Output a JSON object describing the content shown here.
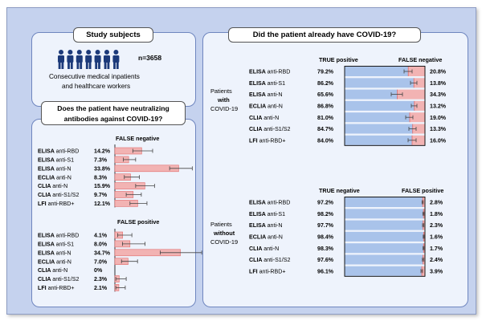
{
  "colors": {
    "background": "#c5d2ee",
    "panel": "#eef3fc",
    "tp_bar": "#a9c3ea",
    "neg_bar": "#f2b3b3",
    "line": "#e26b6b",
    "icon": "#1c3a7a"
  },
  "study": {
    "title": "Study subjects",
    "n_label": "n=3658",
    "description_line1": "Consecutive medical inpatients",
    "description_line2": "and healthcare workers",
    "icon": "person-icon",
    "person_count": 7
  },
  "neutral": {
    "title_line1": "Does the patient have neutralizing",
    "title_line2": "antibodies against COVID-19?",
    "fn_header": "FALSE negative",
    "fp_header": "FALSE positive"
  },
  "covid": {
    "title": "Did the patient already have COVID-19?",
    "with_label": [
      "Patients",
      "with",
      "COVID-19"
    ],
    "without_label": [
      "Patients",
      "without",
      "COVID-19"
    ],
    "tp_header": "TRUE positive",
    "fn_header": "FALSE negative",
    "tn_header": "TRUE negative",
    "fp_header": "FALSE positive"
  },
  "chart_data": [
    {
      "type": "bar",
      "title": "FALSE negative",
      "categories": [
        [
          "ELISA",
          "anti-RBD"
        ],
        [
          "ELISA",
          "anti-S1"
        ],
        [
          "ELISA",
          "anti-N"
        ],
        [
          "ECLIA",
          "anti-N"
        ],
        [
          "CLIA",
          "anti-N"
        ],
        [
          "CLIA",
          "anti-S1/S2"
        ],
        [
          "LFI",
          "anti-RBD+"
        ]
      ],
      "labels": [
        "14.2%",
        "7.3%",
        "33.8%",
        "8.3%",
        "15.9%",
        "9.7%",
        "12.1%"
      ],
      "values": [
        14.2,
        7.3,
        33.8,
        8.3,
        15.9,
        9.7,
        12.1
      ],
      "err_low": [
        9.5,
        4.5,
        29,
        5,
        11,
        6,
        8
      ],
      "err_high": [
        20,
        11,
        41,
        13,
        21,
        14,
        17
      ]
    },
    {
      "type": "bar",
      "title": "FALSE positive",
      "categories": [
        [
          "ELISA",
          "anti-RBD"
        ],
        [
          "ELISA",
          "anti-S1"
        ],
        [
          "ELISA",
          "anti-N"
        ],
        [
          "ECLIA",
          "anti-N"
        ],
        [
          "CLIA",
          "anti-N"
        ],
        [
          "CLIA",
          "anti-S1/S2"
        ],
        [
          "LFI",
          "anti-RBD+"
        ]
      ],
      "labels": [
        "4.1%",
        "8.0%",
        "34.7%",
        "7.0%",
        "0%",
        "2.3%",
        "2.1%"
      ],
      "values": [
        4.1,
        8.0,
        34.7,
        7.0,
        0,
        2.3,
        2.1
      ],
      "err_low": [
        1.5,
        4,
        24,
        3.5,
        0,
        0.5,
        0.5
      ],
      "err_high": [
        9,
        16,
        46,
        12,
        0,
        6,
        5.5
      ]
    },
    {
      "type": "bar",
      "title": "Patients with COVID-19",
      "categories": [
        [
          "ELISA",
          "anti-RBD"
        ],
        [
          "ELISA",
          "anti-S1"
        ],
        [
          "ELISA",
          "anti-N"
        ],
        [
          "ECLIA",
          "anti-N"
        ],
        [
          "CLIA",
          "anti-N"
        ],
        [
          "CLIA",
          "anti-S1/S2"
        ],
        [
          "LFI",
          "anti-RBD+"
        ]
      ],
      "series": [
        {
          "name": "TRUE positive",
          "labels": [
            "79.2%",
            "86.2%",
            "65.6%",
            "86.8%",
            "81.0%",
            "84.7%",
            "84.0%"
          ],
          "values": [
            79.2,
            86.2,
            65.6,
            86.8,
            81.0,
            84.7,
            84.0
          ]
        },
        {
          "name": "FALSE negative",
          "labels": [
            "20.8%",
            "13.8%",
            "34.3%",
            "13.2%",
            "19.0%",
            "13.3%",
            "16.0%"
          ],
          "values": [
            20.8,
            13.8,
            34.3,
            13.2,
            19.0,
            13.3,
            16.0
          ]
        }
      ],
      "err_low": [
        74,
        82,
        58,
        83,
        76,
        80,
        79
      ],
      "err_high": [
        84,
        90,
        72,
        90,
        85,
        89,
        89
      ]
    },
    {
      "type": "bar",
      "title": "Patients without COVID-19",
      "categories": [
        [
          "ELISA",
          "anti-RBD"
        ],
        [
          "ELISA",
          "anti-S1"
        ],
        [
          "ELISA",
          "anti-N"
        ],
        [
          "ECLIA",
          "anti-N"
        ],
        [
          "CLIA",
          "anti-N"
        ],
        [
          "CLIA",
          "anti-S1/S2"
        ],
        [
          "LFI",
          "anti-RBD+"
        ]
      ],
      "series": [
        {
          "name": "TRUE negative",
          "labels": [
            "97.2%",
            "98.2%",
            "97.7%",
            "98.4%",
            "98.3%",
            "97.6%",
            "96.1%"
          ],
          "values": [
            97.2,
            98.2,
            97.7,
            98.4,
            98.3,
            97.6,
            96.1
          ]
        },
        {
          "name": "FALSE positive",
          "labels": [
            "2.8%",
            "1.8%",
            "2.3%",
            "1.6%",
            "1.7%",
            "2.4%",
            "3.9%"
          ],
          "values": [
            2.8,
            1.8,
            2.3,
            1.6,
            1.7,
            2.4,
            3.9
          ]
        }
      ],
      "err_low": [
        96.3,
        97.3,
        97,
        97.8,
        97.6,
        96.8,
        95
      ],
      "err_high": [
        97.9,
        98.8,
        98.4,
        98.9,
        98.8,
        98.3,
        97
      ]
    }
  ]
}
